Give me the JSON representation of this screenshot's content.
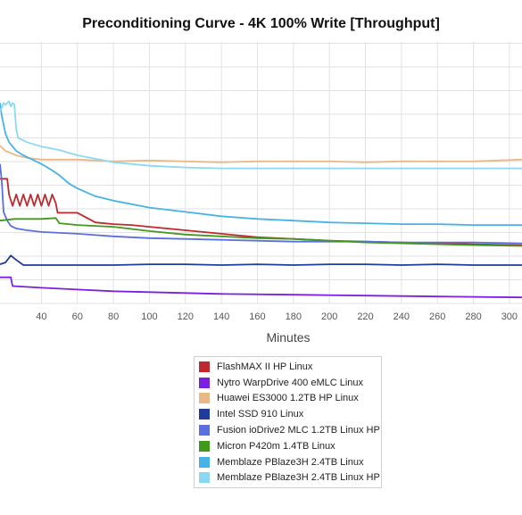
{
  "chart_data": {
    "type": "line",
    "title": "Preconditioning Curve - 4K 100% Write [Throughput]",
    "xlabel": "Minutes",
    "ylabel": "",
    "xlim": [
      17,
      307
    ],
    "ylim": [
      0,
      300
    ],
    "x_ticks": [
      40,
      60,
      80,
      100,
      120,
      140,
      160,
      180,
      200,
      220,
      240,
      260,
      280,
      300
    ],
    "grid": true,
    "legend": "bottom-center",
    "series": [
      {
        "name": "FlashMAX II HP Linux",
        "color": "#c0282d",
        "points": [
          [
            17,
            143
          ],
          [
            21,
            143
          ],
          [
            22,
            125
          ],
          [
            24,
            112
          ],
          [
            26,
            125
          ],
          [
            28,
            112
          ],
          [
            30,
            125
          ],
          [
            32,
            112
          ],
          [
            34,
            125
          ],
          [
            36,
            112
          ],
          [
            38,
            125
          ],
          [
            40,
            112
          ],
          [
            42,
            125
          ],
          [
            44,
            112
          ],
          [
            46,
            125
          ],
          [
            48,
            115
          ],
          [
            49,
            104
          ],
          [
            60,
            104
          ],
          [
            70,
            93
          ],
          [
            80,
            91
          ],
          [
            90,
            90
          ],
          [
            100,
            88
          ],
          [
            120,
            84
          ],
          [
            140,
            80
          ],
          [
            160,
            76
          ],
          [
            180,
            74
          ],
          [
            200,
            72
          ],
          [
            220,
            71
          ],
          [
            240,
            70
          ],
          [
            260,
            69
          ],
          [
            280,
            68
          ],
          [
            307,
            67
          ]
        ]
      },
      {
        "name": "Nytro WarpDrive 400 eMLC Linux",
        "color": "#7b1fe0",
        "points": [
          [
            17,
            30
          ],
          [
            23,
            30
          ],
          [
            24,
            20
          ],
          [
            40,
            18
          ],
          [
            60,
            16
          ],
          [
            80,
            14
          ],
          [
            100,
            13
          ],
          [
            140,
            11
          ],
          [
            180,
            10
          ],
          [
            220,
            9
          ],
          [
            260,
            8
          ],
          [
            307,
            7
          ]
        ]
      },
      {
        "name": "Huawei ES3000 1.2TB HP Linux",
        "color": "#e8b886",
        "points": [
          [
            17,
            181
          ],
          [
            20,
            175
          ],
          [
            26,
            170
          ],
          [
            32,
            167
          ],
          [
            40,
            165
          ],
          [
            60,
            165
          ],
          [
            80,
            163
          ],
          [
            100,
            164
          ],
          [
            120,
            163
          ],
          [
            140,
            162
          ],
          [
            160,
            163
          ],
          [
            180,
            163
          ],
          [
            200,
            163
          ],
          [
            220,
            162
          ],
          [
            240,
            163
          ],
          [
            260,
            163
          ],
          [
            280,
            163
          ],
          [
            307,
            165
          ]
        ]
      },
      {
        "name": "Intel SSD 910 Linux",
        "color": "#1f3b9c",
        "points": [
          [
            17,
            45
          ],
          [
            20,
            47
          ],
          [
            23,
            55
          ],
          [
            26,
            50
          ],
          [
            30,
            44
          ],
          [
            40,
            44
          ],
          [
            60,
            44
          ],
          [
            80,
            44
          ],
          [
            100,
            45
          ],
          [
            120,
            45
          ],
          [
            140,
            44
          ],
          [
            160,
            45
          ],
          [
            180,
            44
          ],
          [
            200,
            45
          ],
          [
            220,
            45
          ],
          [
            240,
            44
          ],
          [
            260,
            45
          ],
          [
            280,
            44
          ],
          [
            307,
            44
          ]
        ]
      },
      {
        "name": "Fusion ioDrive2 MLC 1.2TB Linux HP",
        "color": "#5a6fe0",
        "points": [
          [
            17,
            160
          ],
          [
            18,
            140
          ],
          [
            19,
            105
          ],
          [
            21,
            95
          ],
          [
            23,
            89
          ],
          [
            26,
            86
          ],
          [
            32,
            84
          ],
          [
            40,
            82
          ],
          [
            60,
            80
          ],
          [
            80,
            77
          ],
          [
            100,
            75
          ],
          [
            120,
            74
          ],
          [
            140,
            73
          ],
          [
            160,
            72
          ],
          [
            180,
            71
          ],
          [
            200,
            71
          ],
          [
            220,
            71
          ],
          [
            240,
            70
          ],
          [
            260,
            70
          ],
          [
            280,
            70
          ],
          [
            307,
            69
          ]
        ]
      },
      {
        "name": "Micron P420m 1.4TB Linux",
        "color": "#3f9a1b",
        "points": [
          [
            17,
            95
          ],
          [
            25,
            97
          ],
          [
            40,
            97
          ],
          [
            48,
            98
          ],
          [
            50,
            92
          ],
          [
            60,
            90
          ],
          [
            80,
            88
          ],
          [
            100,
            83
          ],
          [
            120,
            79
          ],
          [
            140,
            77
          ],
          [
            160,
            75
          ],
          [
            180,
            74
          ],
          [
            200,
            72
          ],
          [
            220,
            70
          ],
          [
            240,
            69
          ],
          [
            260,
            68
          ],
          [
            280,
            67
          ],
          [
            307,
            66
          ]
        ]
      },
      {
        "name": "Memblaze PBlaze3H 2.4TB Linux",
        "color": "#45b3e8",
        "points": [
          [
            17,
            230
          ],
          [
            18,
            215
          ],
          [
            20,
            195
          ],
          [
            22,
            185
          ],
          [
            24,
            180
          ],
          [
            26,
            175
          ],
          [
            30,
            170
          ],
          [
            35,
            165
          ],
          [
            40,
            160
          ],
          [
            45,
            154
          ],
          [
            50,
            147
          ],
          [
            55,
            138
          ],
          [
            60,
            132
          ],
          [
            70,
            123
          ],
          [
            80,
            118
          ],
          [
            100,
            110
          ],
          [
            120,
            105
          ],
          [
            140,
            100
          ],
          [
            160,
            97
          ],
          [
            180,
            95
          ],
          [
            200,
            93
          ],
          [
            220,
            92
          ],
          [
            240,
            91
          ],
          [
            260,
            91
          ],
          [
            280,
            90
          ],
          [
            307,
            90
          ]
        ]
      },
      {
        "name": "Memblaze PBlaze3H 2.4TB Linux HP",
        "color": "#8bd8f5",
        "points": [
          [
            17,
            220
          ],
          [
            19,
            230
          ],
          [
            20,
            228
          ],
          [
            22,
            232
          ],
          [
            23,
            226
          ],
          [
            24,
            230
          ],
          [
            25,
            228
          ],
          [
            26,
            200
          ],
          [
            27,
            190
          ],
          [
            32,
            185
          ],
          [
            40,
            180
          ],
          [
            50,
            176
          ],
          [
            60,
            170
          ],
          [
            80,
            162
          ],
          [
            100,
            158
          ],
          [
            120,
            156
          ],
          [
            140,
            155
          ],
          [
            160,
            155
          ],
          [
            180,
            155
          ],
          [
            200,
            155
          ],
          [
            220,
            155
          ],
          [
            240,
            155
          ],
          [
            260,
            155
          ],
          [
            280,
            155
          ],
          [
            307,
            155
          ]
        ]
      }
    ]
  }
}
